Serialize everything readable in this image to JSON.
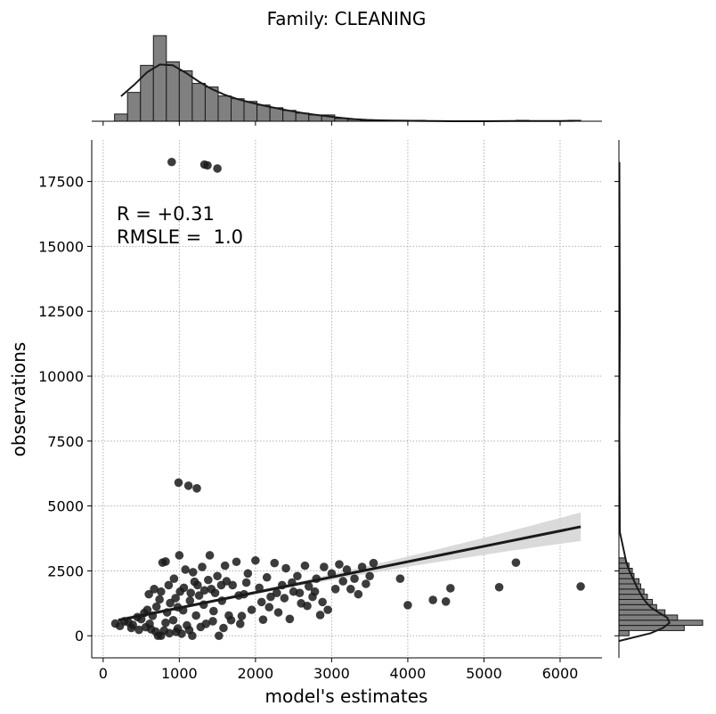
{
  "chart_data": {
    "type": "scatter",
    "title": "Family: CLEANING",
    "xlabel": "model's estimates",
    "ylabel": "observations",
    "xlim": [
      -150,
      6550
    ],
    "ylim": [
      -850,
      19100
    ],
    "xticks": [
      0,
      1000,
      2000,
      3000,
      4000,
      5000,
      6000
    ],
    "yticks": [
      0,
      2500,
      5000,
      7500,
      10000,
      12500,
      15000,
      17500
    ],
    "grid": true,
    "annotations": [
      "R = +0.31",
      "RMSLE =  1.0"
    ],
    "colors": {
      "points": "#1a1a1a",
      "hist": "#808080",
      "ci_band": "#d3d3d3",
      "grid": "#b0b0b0"
    },
    "regression": {
      "x": [
        200,
        6270
      ],
      "y": [
        600,
        4200
      ],
      "ci_half_width_at_ends": [
        150,
        550
      ]
    },
    "marginal_x": {
      "type": "histogram",
      "bin_edges": [
        150,
        320,
        490,
        660,
        830,
        1000,
        1170,
        1340,
        1510,
        1680,
        1850,
        2020,
        2190,
        2360,
        2530,
        2700,
        2870,
        3040,
        3210,
        3380,
        3550,
        3720,
        3890,
        4060,
        4230,
        4400,
        4570,
        4740,
        4910,
        5080,
        5250,
        5420,
        5590,
        5760,
        5930,
        6100,
        6270
      ],
      "counts": [
        8,
        32,
        62,
        95,
        66,
        56,
        42,
        38,
        28,
        25,
        22,
        18,
        15,
        12,
        9,
        7,
        7,
        3,
        2,
        1,
        1,
        1,
        0,
        1,
        0,
        0,
        0,
        0,
        0,
        0,
        0,
        1,
        0,
        0,
        0,
        1
      ]
    },
    "marginal_y": {
      "type": "histogram",
      "bin_edges": [
        0,
        200,
        400,
        600,
        800,
        1000,
        1200,
        1400,
        1600,
        1800,
        2000,
        2200,
        2400,
        2600,
        2800,
        3000
      ],
      "counts": [
        12,
        78,
        100,
        70,
        55,
        45,
        40,
        34,
        30,
        26,
        24,
        18,
        16,
        12,
        8
      ]
    },
    "points": [
      [
        900,
        18250
      ],
      [
        1330,
        18150
      ],
      [
        1370,
        18120
      ],
      [
        1500,
        18000
      ],
      [
        990,
        5900
      ],
      [
        1120,
        5780
      ],
      [
        1230,
        5680
      ],
      [
        3900,
        2200
      ],
      [
        4000,
        1180
      ],
      [
        4330,
        1380
      ],
      [
        4500,
        1320
      ],
      [
        4560,
        1830
      ],
      [
        5200,
        1870
      ],
      [
        5420,
        2820
      ],
      [
        6270,
        1900
      ],
      [
        160,
        470
      ],
      [
        220,
        380
      ],
      [
        280,
        560
      ],
      [
        330,
        520
      ],
      [
        390,
        420
      ],
      [
        450,
        720
      ],
      [
        500,
        640
      ],
      [
        540,
        880
      ],
      [
        580,
        1000
      ],
      [
        610,
        460
      ],
      [
        650,
        770
      ],
      [
        700,
        1120
      ],
      [
        720,
        0
      ],
      [
        760,
        0
      ],
      [
        780,
        2820
      ],
      [
        820,
        2860
      ],
      [
        840,
        900
      ],
      [
        880,
        1260
      ],
      [
        920,
        600
      ],
      [
        950,
        1450
      ],
      [
        980,
        280
      ],
      [
        1000,
        3100
      ],
      [
        1010,
        1700
      ],
      [
        1050,
        980
      ],
      [
        1080,
        2550
      ],
      [
        1100,
        400
      ],
      [
        1140,
        1350
      ],
      [
        1170,
        0
      ],
      [
        1200,
        2080
      ],
      [
        1220,
        780
      ],
      [
        1260,
        1550
      ],
      [
        1300,
        2650
      ],
      [
        1320,
        1200
      ],
      [
        1350,
        460
      ],
      [
        1400,
        3100
      ],
      [
        1420,
        1800
      ],
      [
        1450,
        950
      ],
      [
        1500,
        2300
      ],
      [
        1520,
        0
      ],
      [
        1560,
        1350
      ],
      [
        1600,
        2700
      ],
      [
        1650,
        780
      ],
      [
        1700,
        1950
      ],
      [
        1750,
        2850
      ],
      [
        1800,
        460
      ],
      [
        1850,
        1600
      ],
      [
        1900,
        2400
      ],
      [
        1950,
        1000
      ],
      [
        2000,
        2900
      ],
      [
        2050,
        1850
      ],
      [
        2100,
        620
      ],
      [
        2150,
        2250
      ],
      [
        2200,
        1500
      ],
      [
        2250,
        2800
      ],
      [
        2300,
        900
      ],
      [
        2350,
        1950
      ],
      [
        2400,
        2600
      ],
      [
        2450,
        650
      ],
      [
        2500,
        1700
      ],
      [
        2550,
        2300
      ],
      [
        2600,
        1250
      ],
      [
        2650,
        2700
      ],
      [
        2700,
        1900
      ],
      [
        2750,
        1500
      ],
      [
        2800,
        2200
      ],
      [
        2850,
        800
      ],
      [
        2900,
        2650
      ],
      [
        2950,
        1000
      ],
      [
        3000,
        2400
      ],
      [
        3050,
        1800
      ],
      [
        3100,
        2750
      ],
      [
        3150,
        2100
      ],
      [
        3200,
        2550
      ],
      [
        3300,
        2200
      ],
      [
        3400,
        2650
      ],
      [
        3500,
        2300
      ],
      [
        3550,
        2800
      ],
      [
        600,
        1600
      ],
      [
        670,
        1800
      ],
      [
        740,
        1400
      ],
      [
        860,
        1950
      ],
      [
        930,
        2200
      ],
      [
        1060,
        1850
      ],
      [
        1180,
        2450
      ],
      [
        1240,
        1950
      ],
      [
        1380,
        2150
      ],
      [
        1470,
        1650
      ],
      [
        1620,
        2100
      ],
      [
        1780,
        1550
      ],
      [
        1880,
        2050
      ],
      [
        370,
        300
      ],
      [
        470,
        230
      ],
      [
        560,
        330
      ],
      [
        630,
        250
      ],
      [
        690,
        160
      ],
      [
        800,
        200
      ],
      [
        870,
        100
      ],
      [
        960,
        150
      ],
      [
        1030,
        80
      ],
      [
        1130,
        220
      ],
      [
        1280,
        340
      ],
      [
        1440,
        560
      ],
      [
        1580,
        300
      ],
      [
        1680,
        600
      ],
      [
        1820,
        760
      ],
      [
        2080,
        1300
      ],
      [
        2180,
        1100
      ],
      [
        2280,
        1650
      ],
      [
        2380,
        1450
      ],
      [
        2480,
        2050
      ],
      [
        2580,
        1650
      ],
      [
        2680,
        1150
      ],
      [
        2780,
        1700
      ],
      [
        2880,
        1300
      ],
      [
        3250,
        1800
      ],
      [
        3450,
        2000
      ],
      [
        3350,
        1600
      ],
      [
        760,
        1700
      ],
      [
        820,
        500
      ],
      [
        980,
        1100
      ],
      [
        1150,
        1650
      ],
      [
        1330,
        1750
      ],
      [
        1550,
        1950
      ]
    ]
  }
}
